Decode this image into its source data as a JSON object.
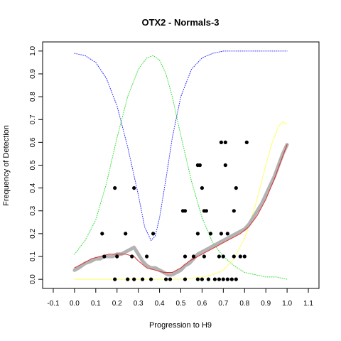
{
  "chart_data": {
    "type": "scatter",
    "title": "OTX2 - Normals-3",
    "xlabel": "Progression to H9",
    "ylabel": "Frequency of Detection",
    "xlim": [
      -0.15,
      1.15
    ],
    "ylim": [
      -0.04,
      1.04
    ],
    "x_ticks": [
      -0.1,
      0.0,
      0.1,
      0.2,
      0.3,
      0.4,
      0.5,
      0.6,
      0.7,
      0.8,
      0.9,
      1.0,
      1.1
    ],
    "y_ticks": [
      0.0,
      0.1,
      0.2,
      0.3,
      0.4,
      0.5,
      0.6,
      0.7,
      0.8,
      0.9,
      1.0
    ],
    "colors": {
      "points": "#000000",
      "running_average": "#b3b3b3",
      "fit": "#e03030",
      "blue_curve": "#2b2bff",
      "green_curve": "#33dd33",
      "yellow_curve": "#ffff66"
    },
    "series": [
      {
        "type": "scatter",
        "x": [
          0.19,
          0.25,
          0.28,
          0.32,
          0.36,
          0.43,
          0.45,
          0.52,
          0.58,
          0.6,
          0.63,
          0.66,
          0.68,
          0.7,
          0.72,
          0.74,
          0.76,
          0.14,
          0.2,
          0.27,
          0.34,
          0.52,
          0.56,
          0.61,
          0.68,
          0.7,
          0.75,
          0.78,
          0.8,
          0.13,
          0.24,
          0.37,
          0.58,
          0.64,
          0.69,
          0.72,
          0.51,
          0.52,
          0.61,
          0.62,
          0.75,
          0.19,
          0.28,
          0.6,
          0.76,
          0.58,
          0.59,
          0.71,
          0.69,
          0.71,
          0.81
        ],
        "y": [
          0.0,
          0.0,
          0.0,
          0.0,
          0.0,
          0.0,
          0.0,
          0.0,
          0.0,
          0.0,
          0.0,
          0.0,
          0.0,
          0.0,
          0.0,
          0.0,
          0.0,
          0.1,
          0.1,
          0.1,
          0.1,
          0.1,
          0.1,
          0.1,
          0.1,
          0.1,
          0.1,
          0.1,
          0.1,
          0.2,
          0.2,
          0.2,
          0.2,
          0.2,
          0.2,
          0.2,
          0.3,
          0.3,
          0.3,
          0.3,
          0.3,
          0.4,
          0.4,
          0.4,
          0.4,
          0.5,
          0.5,
          0.5,
          0.6,
          0.6,
          0.6
        ]
      },
      {
        "type": "line",
        "x": [
          0.0,
          0.02,
          0.05,
          0.08,
          0.1,
          0.12,
          0.14,
          0.16,
          0.18,
          0.2,
          0.22,
          0.24,
          0.26,
          0.28,
          0.3,
          0.32,
          0.34,
          0.36,
          0.38,
          0.4,
          0.42,
          0.44,
          0.46,
          0.48,
          0.5,
          0.52,
          0.54,
          0.56,
          0.58,
          0.6,
          0.62,
          0.64,
          0.66,
          0.68,
          0.7,
          0.72,
          0.74,
          0.76,
          0.78,
          0.8,
          0.82,
          0.84,
          0.86,
          0.88,
          0.9,
          0.92,
          0.94,
          0.96,
          0.98,
          1.0
        ],
        "y": [
          0.04,
          0.05,
          0.07,
          0.08,
          0.09,
          0.09,
          0.1,
          0.1,
          0.1,
          0.11,
          0.11,
          0.12,
          0.13,
          0.14,
          0.11,
          0.08,
          0.06,
          0.05,
          0.05,
          0.04,
          0.03,
          0.02,
          0.02,
          0.03,
          0.04,
          0.06,
          0.07,
          0.09,
          0.11,
          0.12,
          0.13,
          0.14,
          0.15,
          0.16,
          0.17,
          0.18,
          0.19,
          0.2,
          0.21,
          0.22,
          0.24,
          0.27,
          0.3,
          0.33,
          0.37,
          0.41,
          0.45,
          0.5,
          0.55,
          0.59
        ]
      },
      {
        "type": "line",
        "x": [
          0.0,
          0.04,
          0.08,
          0.12,
          0.16,
          0.2,
          0.24,
          0.28,
          0.3,
          0.34,
          0.38,
          0.42,
          0.46,
          0.5,
          0.54,
          0.58,
          0.62,
          0.66,
          0.7,
          0.74,
          0.78,
          0.82,
          0.86,
          0.9,
          0.94,
          0.98,
          1.0
        ],
        "y": [
          0.05,
          0.07,
          0.09,
          0.1,
          0.11,
          0.11,
          0.11,
          0.1,
          0.08,
          0.05,
          0.04,
          0.03,
          0.03,
          0.05,
          0.08,
          0.1,
          0.12,
          0.14,
          0.16,
          0.18,
          0.2,
          0.23,
          0.28,
          0.35,
          0.44,
          0.54,
          0.59
        ]
      },
      {
        "type": "line",
        "x": [
          0.0,
          0.05,
          0.1,
          0.15,
          0.2,
          0.25,
          0.3,
          0.33,
          0.36,
          0.38,
          0.4,
          0.43,
          0.46,
          0.5,
          0.55,
          0.6,
          0.65,
          0.7,
          0.75,
          0.8,
          0.85,
          0.9,
          0.95,
          1.0
        ],
        "y": [
          0.99,
          0.98,
          0.95,
          0.88,
          0.76,
          0.58,
          0.37,
          0.23,
          0.17,
          0.19,
          0.27,
          0.44,
          0.62,
          0.8,
          0.92,
          0.97,
          0.99,
          1.0,
          1.0,
          1.0,
          1.0,
          1.0,
          1.0,
          1.0
        ]
      },
      {
        "type": "line",
        "x": [
          0.0,
          0.05,
          0.1,
          0.15,
          0.2,
          0.25,
          0.3,
          0.34,
          0.37,
          0.4,
          0.43,
          0.46,
          0.5,
          0.55,
          0.6,
          0.65,
          0.7,
          0.75,
          0.8,
          0.85,
          0.9,
          0.95,
          1.0
        ],
        "y": [
          0.11,
          0.17,
          0.26,
          0.42,
          0.62,
          0.8,
          0.92,
          0.97,
          0.98,
          0.96,
          0.9,
          0.8,
          0.63,
          0.43,
          0.27,
          0.16,
          0.1,
          0.06,
          0.03,
          0.02,
          0.01,
          0.01,
          0.0
        ]
      },
      {
        "type": "line",
        "x": [
          0.0,
          0.1,
          0.2,
          0.3,
          0.4,
          0.5,
          0.6,
          0.65,
          0.7,
          0.75,
          0.8,
          0.85,
          0.9,
          0.93,
          0.96,
          0.98,
          1.0
        ],
        "y": [
          0.0,
          0.0,
          0.0,
          0.0,
          0.0,
          0.0,
          0.01,
          0.02,
          0.04,
          0.09,
          0.18,
          0.32,
          0.5,
          0.6,
          0.67,
          0.69,
          0.68
        ]
      }
    ]
  }
}
